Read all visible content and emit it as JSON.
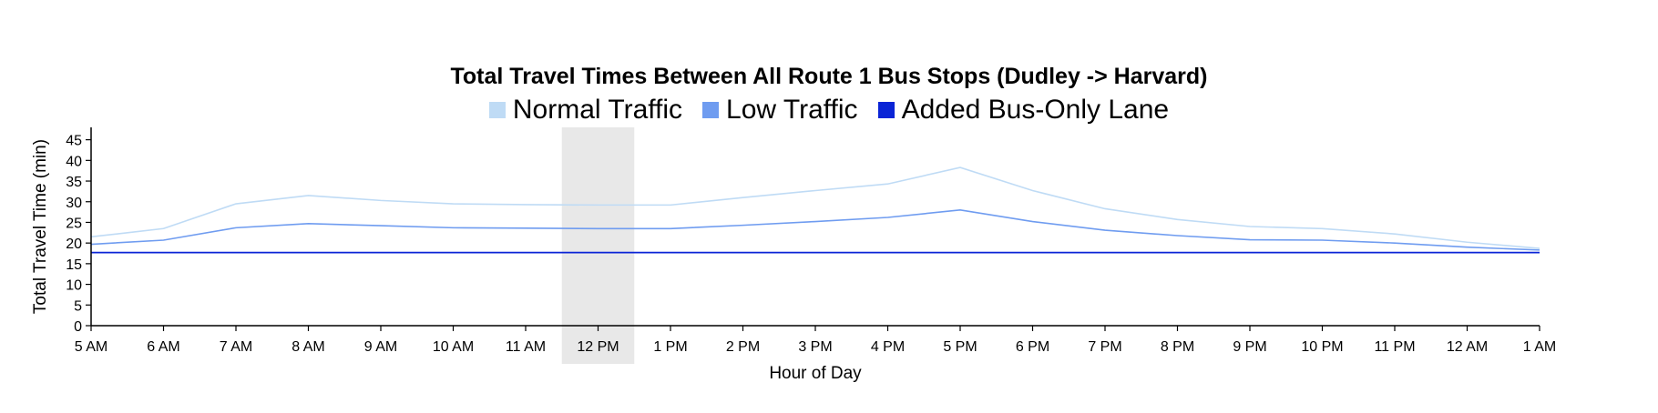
{
  "chart_data": {
    "type": "line",
    "title": "Total Travel Times Between All Route 1 Bus Stops (Dudley -> Harvard)",
    "xlabel": "Hour of Day",
    "ylabel": "Total Travel Time (min)",
    "categories": [
      "5 AM",
      "6 AM",
      "7 AM",
      "8 AM",
      "9 AM",
      "10 AM",
      "11 AM",
      "12 PM",
      "1 PM",
      "2 PM",
      "3 PM",
      "4 PM",
      "5 PM",
      "6 PM",
      "7 PM",
      "8 PM",
      "9 PM",
      "10 PM",
      "11 PM",
      "12 AM",
      "1 AM"
    ],
    "y_ticks": [
      0,
      5,
      10,
      15,
      20,
      25,
      30,
      35,
      40,
      45
    ],
    "ylim": [
      0,
      48
    ],
    "highlight_category": "12 PM",
    "legend_position": "top",
    "grid": false,
    "series": [
      {
        "name": "Normal Traffic",
        "color": "#bfdbf5",
        "values": [
          21.5,
          23.5,
          29.5,
          31.5,
          30.3,
          29.5,
          29.3,
          29.2,
          29.2,
          31,
          32.7,
          34.3,
          38.3,
          32.7,
          28.3,
          25.7,
          24,
          23.5,
          22.2,
          20.2,
          18.7
        ]
      },
      {
        "name": "Low Traffic",
        "color": "#6f9cf0",
        "values": [
          19.7,
          20.7,
          23.7,
          24.7,
          24.2,
          23.7,
          23.6,
          23.5,
          23.5,
          24.3,
          25.2,
          26.2,
          28,
          25.2,
          23.1,
          21.8,
          20.8,
          20.7,
          20,
          19,
          18.3
        ]
      },
      {
        "name": "Added Bus-Only Lane",
        "color": "#0a24d6",
        "values": [
          17.7,
          17.7,
          17.7,
          17.7,
          17.7,
          17.7,
          17.7,
          17.7,
          17.7,
          17.7,
          17.7,
          17.7,
          17.7,
          17.7,
          17.7,
          17.7,
          17.7,
          17.7,
          17.7,
          17.7,
          17.7
        ]
      }
    ]
  }
}
